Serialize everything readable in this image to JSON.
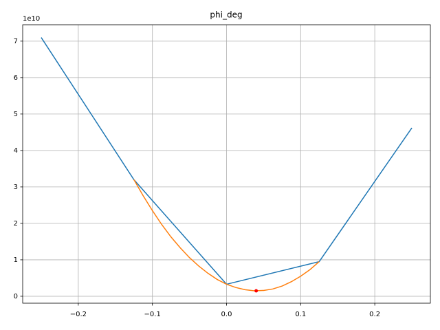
{
  "chart_data": {
    "type": "line",
    "title": "phi_deg",
    "offset_text": "1e10",
    "xlim": [
      -0.275,
      0.275
    ],
    "ylim": [
      -0.19,
      7.45
    ],
    "xticks": [
      {
        "value": -0.2,
        "label": "−0.2"
      },
      {
        "value": -0.1,
        "label": "−0.1"
      },
      {
        "value": 0,
        "label": "0.0"
      },
      0.1,
      0.2
    ],
    "yticks": [
      0,
      1,
      2,
      3,
      4,
      5,
      6,
      7
    ],
    "grid": true,
    "series": [
      {
        "color": "#1f77b4",
        "style": "line",
        "x": [
          -0.25,
          -0.125,
          0,
          0.125,
          0.25
        ],
        "values": [
          7.1,
          3.2,
          0.33,
          0.95,
          4.62
        ]
      },
      {
        "color": "#ff7f0e",
        "style": "line",
        "x": [
          -0.125,
          -0.1125,
          -0.1,
          -0.0875,
          -0.075,
          -0.0625,
          -0.05,
          -0.0375,
          -0.025,
          -0.0125,
          0,
          0.0125,
          0.025,
          0.0375,
          0.05,
          0.0625,
          0.075,
          0.0875,
          0.1,
          0.1125,
          0.125
        ],
        "values": [
          3.2,
          2.76,
          2.35,
          1.97,
          1.63,
          1.33,
          1.06,
          0.83,
          0.63,
          0.46,
          0.33,
          0.24,
          0.18,
          0.15,
          0.16,
          0.2,
          0.28,
          0.4,
          0.55,
          0.73,
          0.95
        ]
      },
      {
        "color": "#ff0000",
        "style": "point",
        "x": [
          0.04
        ],
        "values": [
          0.15
        ]
      }
    ]
  }
}
